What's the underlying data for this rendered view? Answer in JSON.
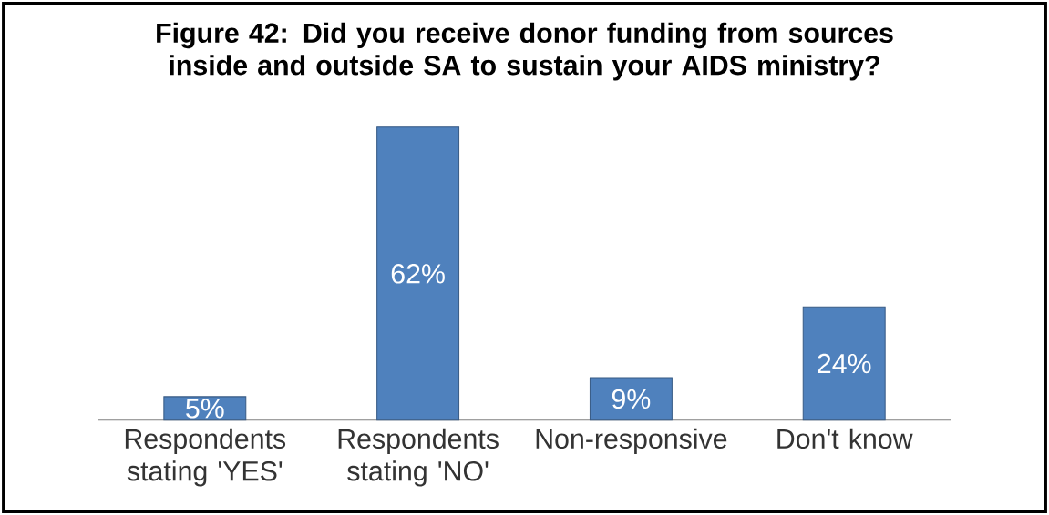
{
  "chart_data": {
    "type": "bar",
    "title": "Figure 42: Did you receive donor funding from sources inside and outside SA to sustain your AIDS ministry?",
    "categories": [
      "Respondents stating 'YES'",
      "Respondents stating 'NO'",
      "Non-responsive",
      "Don't know"
    ],
    "values": [
      5,
      62,
      9,
      24
    ],
    "color": "#4f81bd",
    "value_labels": [
      "5%",
      "62%",
      "9%",
      "24%"
    ]
  }
}
